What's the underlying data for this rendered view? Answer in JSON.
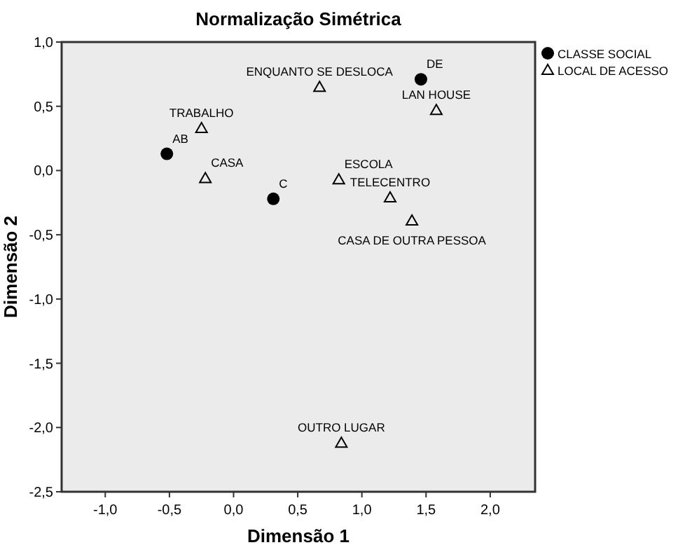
{
  "chart_data": {
    "type": "scatter",
    "title": "Normalização Simétrica",
    "xlabel": "Dimensão 1",
    "ylabel": "Dimensão 2",
    "xlim": [
      -1.34,
      2.35
    ],
    "ylim": [
      -2.5,
      1.0
    ],
    "xticks": [
      {
        "value": -1,
        "label": "-1,0"
      },
      {
        "value": -0.5,
        "label": "-0,5"
      },
      {
        "value": 0,
        "label": "0,0"
      },
      {
        "value": 0.5,
        "label": "0,5"
      },
      {
        "value": 1,
        "label": "1,0"
      },
      {
        "value": 1.5,
        "label": "1,5"
      },
      {
        "value": 2,
        "label": "2,0"
      }
    ],
    "yticks": [
      {
        "value": -2.5,
        "label": "-2,5"
      },
      {
        "value": -2,
        "label": "-2,0"
      },
      {
        "value": -1.5,
        "label": "-1,5"
      },
      {
        "value": -1,
        "label": "-1,0"
      },
      {
        "value": -0.5,
        "label": "-0,5"
      },
      {
        "value": 0,
        "label": "0,0"
      },
      {
        "value": 0.5,
        "label": "0,5"
      },
      {
        "value": 1,
        "label": "1,0"
      }
    ],
    "grid": false,
    "legend": "right",
    "series": [
      {
        "name": "CLASSE SOCIAL",
        "color": "#000000",
        "marker": "circle",
        "x": [
          -0.52,
          0.31,
          1.46
        ],
        "values": [
          0.13,
          -0.22,
          0.71
        ]
      },
      {
        "name": "LOCAL DE ACESSO",
        "color": "#000000",
        "marker": "triangle",
        "x": [
          -0.25,
          -0.22,
          0.67,
          1.58,
          0.82,
          1.22,
          1.39,
          0.84
        ],
        "values": [
          0.33,
          -0.06,
          0.65,
          0.47,
          -0.07,
          -0.21,
          -0.39,
          -2.12
        ]
      }
    ],
    "annotations": [
      {
        "text": "AB",
        "x": -0.52,
        "y": 0.13
      },
      {
        "text": "C",
        "x": 0.31,
        "y": -0.22
      },
      {
        "text": "DE",
        "x": 1.46,
        "y": 0.71
      },
      {
        "text": "TRABALHO",
        "x": -0.25,
        "y": 0.33
      },
      {
        "text": "CASA",
        "x": -0.22,
        "y": -0.06
      },
      {
        "text": "ENQUANTO SE DESLOCA",
        "x": 0.67,
        "y": 0.65
      },
      {
        "text": "LAN HOUSE",
        "x": 1.58,
        "y": 0.47
      },
      {
        "text": "ESCOLA",
        "x": 0.82,
        "y": -0.07
      },
      {
        "text": "TELECENTRO",
        "x": 1.22,
        "y": -0.21
      },
      {
        "text": "CASA DE OUTRA PESSOA",
        "x": 1.39,
        "y": -0.39
      },
      {
        "text": "OUTRO LUGAR",
        "x": 0.84,
        "y": -2.12
      }
    ]
  }
}
